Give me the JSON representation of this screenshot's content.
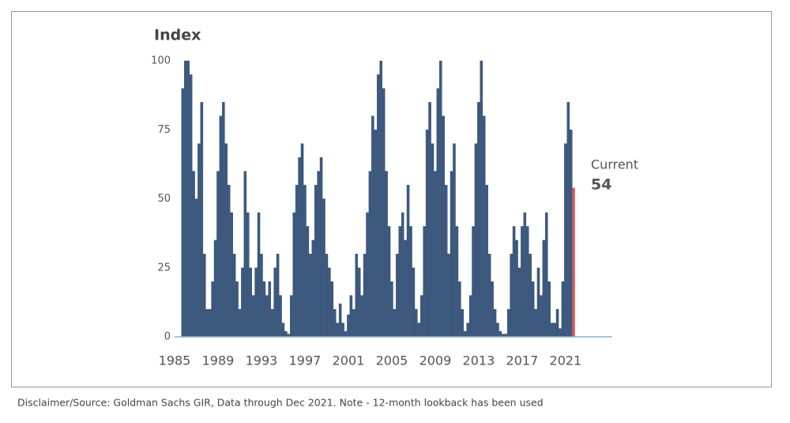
{
  "chart_data": {
    "type": "bar",
    "title": "Index",
    "annotation": "Current",
    "source": "Disclaimer/Source: Goldman Sachs GIR, Data through Dec 2021. Note - 12-month lookback has been used",
    "x": [
      1985.75,
      1986,
      1986.25,
      1986.5,
      1986.75,
      1987,
      1987.25,
      1987.5,
      1987.75,
      1988,
      1988.25,
      1988.5,
      1988.75,
      1989,
      1989.25,
      1989.5,
      1989.75,
      1990,
      1990.25,
      1990.5,
      1990.75,
      1991,
      1991.25,
      1991.5,
      1991.75,
      1992,
      1992.25,
      1992.5,
      1992.75,
      1993,
      1993.25,
      1993.5,
      1993.75,
      1994,
      1994.25,
      1994.5,
      1994.75,
      1995,
      1995.25,
      1995.5,
      1995.75,
      1996,
      1996.25,
      1996.5,
      1996.75,
      1997,
      1997.25,
      1997.5,
      1997.75,
      1998,
      1998.25,
      1998.5,
      1998.75,
      1999,
      1999.25,
      1999.5,
      1999.75,
      2000,
      2000.25,
      2000.5,
      2000.75,
      2001,
      2001.25,
      2001.5,
      2001.75,
      2002,
      2002.25,
      2002.5,
      2002.75,
      2003,
      2003.25,
      2003.5,
      2003.75,
      2004,
      2004.25,
      2004.5,
      2004.75,
      2005,
      2005.25,
      2005.5,
      2005.75,
      2006,
      2006.25,
      2006.5,
      2006.75,
      2007,
      2007.25,
      2007.5,
      2007.75,
      2008,
      2008.25,
      2008.5,
      2008.75,
      2009,
      2009.25,
      2009.5,
      2009.75,
      2010,
      2010.25,
      2010.5,
      2010.75,
      2011,
      2011.25,
      2011.5,
      2011.75,
      2012,
      2012.25,
      2012.5,
      2012.75,
      2013,
      2013.25,
      2013.5,
      2013.75,
      2014,
      2014.25,
      2014.5,
      2014.75,
      2015,
      2015.25,
      2015.5,
      2015.75,
      2016,
      2016.25,
      2016.5,
      2016.75,
      2017,
      2017.25,
      2017.5,
      2017.75,
      2018,
      2018.25,
      2018.5,
      2018.75,
      2019,
      2019.25,
      2019.5,
      2019.75,
      2020,
      2020.25,
      2020.5,
      2020.75,
      2021,
      2021.25,
      2021.5,
      2021.75
    ],
    "values": [
      90,
      100,
      100,
      95,
      60,
      50,
      70,
      85,
      30,
      10,
      10,
      20,
      35,
      60,
      80,
      85,
      70,
      55,
      45,
      30,
      20,
      10,
      25,
      60,
      45,
      25,
      15,
      25,
      45,
      30,
      20,
      15,
      20,
      10,
      25,
      30,
      15,
      5,
      2,
      1,
      15,
      45,
      55,
      65,
      70,
      55,
      40,
      30,
      35,
      55,
      60,
      65,
      50,
      30,
      25,
      20,
      10,
      5,
      12,
      5,
      2,
      8,
      15,
      10,
      30,
      25,
      15,
      30,
      45,
      60,
      80,
      75,
      95,
      100,
      90,
      60,
      40,
      20,
      10,
      30,
      40,
      45,
      35,
      55,
      40,
      25,
      10,
      5,
      15,
      40,
      75,
      85,
      70,
      60,
      90,
      100,
      80,
      55,
      30,
      60,
      70,
      40,
      20,
      10,
      2,
      5,
      15,
      40,
      70,
      85,
      100,
      80,
      55,
      30,
      20,
      10,
      5,
      2,
      1,
      1,
      10,
      30,
      40,
      35,
      25,
      40,
      45,
      40,
      30,
      20,
      10,
      25,
      15,
      35,
      45,
      20,
      5,
      5,
      10,
      3,
      20,
      70,
      85,
      75,
      54
    ],
    "color": "#3d5a80",
    "highlight_color": "#e05050",
    "xlim": [
      1985,
      2025.3
    ],
    "xticks": [
      1985,
      1989,
      1993,
      1997,
      2001,
      2005,
      2009,
      2013,
      2017,
      2021
    ],
    "ylim": [
      0,
      100
    ],
    "yticks": [
      0,
      25,
      50,
      75,
      100
    ],
    "grid": false
  }
}
